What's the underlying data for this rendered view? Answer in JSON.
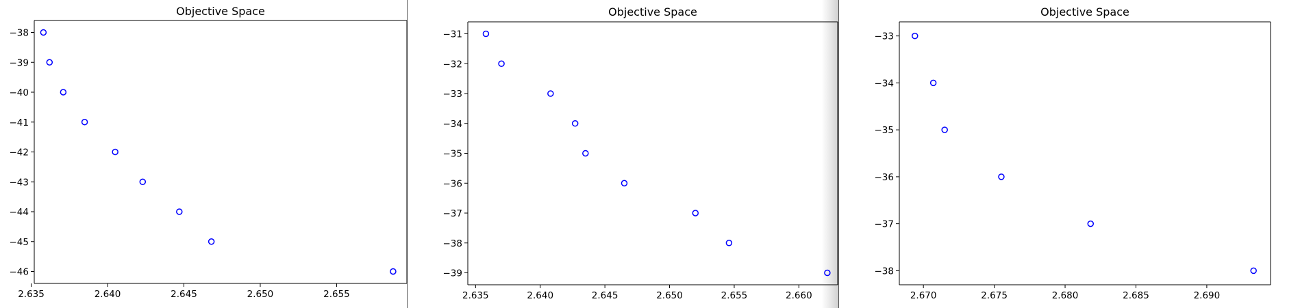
{
  "colors": {
    "marker": "#0000ff",
    "axis": "#000000",
    "background": "#ffffff",
    "separator": "#555555"
  },
  "chart_data": [
    {
      "type": "scatter",
      "title": "Objective Space",
      "xlabel": "",
      "ylabel": "",
      "xlim": [
        2.6352,
        2.6596
      ],
      "ylim": [
        -46.4,
        -37.6
      ],
      "xticks": [
        "2.635",
        "2.640",
        "2.645",
        "2.650",
        "2.655"
      ],
      "yticks": [
        "−38",
        "−39",
        "−40",
        "−41",
        "−42",
        "−43",
        "−44",
        "−45",
        "−46"
      ],
      "grid": false,
      "marker": "open circle",
      "points": [
        {
          "x": 2.6358,
          "y": -38
        },
        {
          "x": 2.6362,
          "y": -39
        },
        {
          "x": 2.6371,
          "y": -40
        },
        {
          "x": 2.6385,
          "y": -41
        },
        {
          "x": 2.6405,
          "y": -42
        },
        {
          "x": 2.6423,
          "y": -43
        },
        {
          "x": 2.6447,
          "y": -44
        },
        {
          "x": 2.6468,
          "y": -45
        },
        {
          "x": 2.6587,
          "y": -46
        }
      ]
    },
    {
      "type": "scatter",
      "title": "Objective Space",
      "xlabel": "",
      "ylabel": "",
      "xlim": [
        2.6344,
        2.663
      ],
      "ylim": [
        -39.4,
        -30.6
      ],
      "xticks": [
        "2.635",
        "2.640",
        "2.645",
        "2.650",
        "2.655",
        "2.660"
      ],
      "yticks": [
        "−31",
        "−32",
        "−33",
        "−34",
        "−35",
        "−36",
        "−37",
        "−38",
        "−39"
      ],
      "grid": false,
      "marker": "open circle",
      "points": [
        {
          "x": 2.6358,
          "y": -31
        },
        {
          "x": 2.637,
          "y": -32
        },
        {
          "x": 2.6408,
          "y": -33
        },
        {
          "x": 2.6427,
          "y": -34
        },
        {
          "x": 2.6435,
          "y": -35
        },
        {
          "x": 2.6465,
          "y": -36
        },
        {
          "x": 2.652,
          "y": -37
        },
        {
          "x": 2.6546,
          "y": -38
        },
        {
          "x": 2.6622,
          "y": -39
        }
      ]
    },
    {
      "type": "scatter",
      "title": "Objective Space",
      "xlabel": "",
      "ylabel": "",
      "xlim": [
        2.6683,
        2.6945
      ],
      "ylim": [
        -38.3,
        -32.7
      ],
      "xticks": [
        "2.670",
        "2.675",
        "2.680",
        "2.685",
        "2.690"
      ],
      "yticks": [
        "−33",
        "−34",
        "−35",
        "−36",
        "−37",
        "−38"
      ],
      "grid": false,
      "marker": "open circle",
      "points": [
        {
          "x": 2.6694,
          "y": -33
        },
        {
          "x": 2.6707,
          "y": -34
        },
        {
          "x": 2.6715,
          "y": -35
        },
        {
          "x": 2.6755,
          "y": -36
        },
        {
          "x": 2.6818,
          "y": -37
        },
        {
          "x": 2.6933,
          "y": -38
        }
      ]
    }
  ]
}
